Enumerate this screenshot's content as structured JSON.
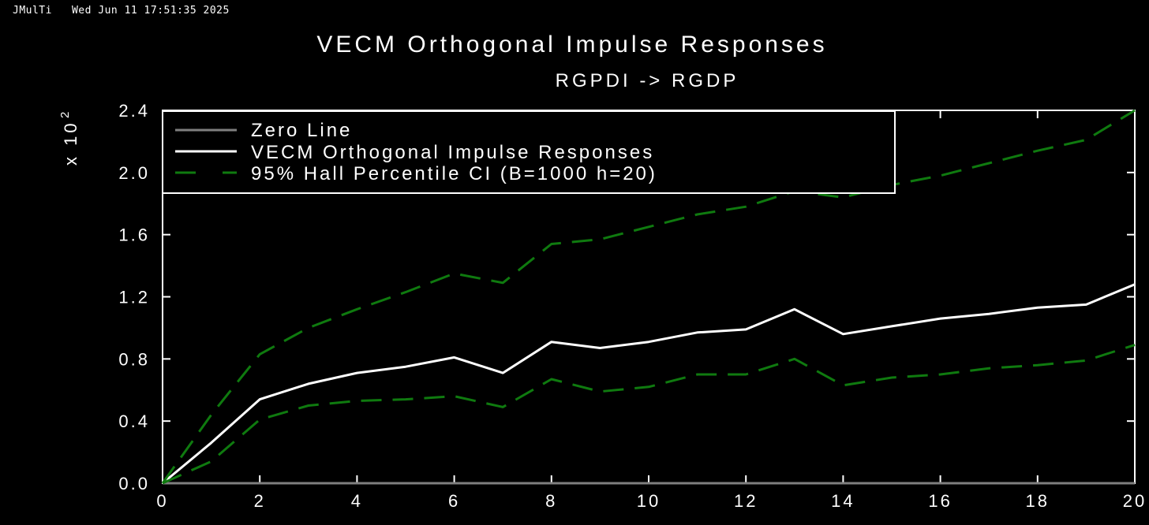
{
  "header": {
    "app": "JMulTi",
    "timestamp": "Wed Jun 11 17:51:35 2025"
  },
  "colors": {
    "background": "#000000",
    "zero_line": "#7f7f7f",
    "irf": "#ffffff",
    "ci": "#0f7a0f"
  },
  "chart_data": {
    "type": "line",
    "title": "VECM Orthogonal Impulse Responses",
    "subtitle": "RGPDI -> RGDP",
    "ylabel_scale": "x 10",
    "ylabel_exp": "2",
    "xlim": [
      0,
      20
    ],
    "ylim": [
      0,
      2.4
    ],
    "x_ticks": [
      0,
      2,
      4,
      6,
      8,
      10,
      12,
      14,
      16,
      18,
      20
    ],
    "y_ticks": [
      "0.0",
      "0.4",
      "0.8",
      "1.2",
      "1.6",
      "2.0",
      "2.4"
    ],
    "legend_position": "top-left",
    "x": [
      0,
      1,
      2,
      3,
      4,
      5,
      6,
      7,
      8,
      9,
      10,
      11,
      12,
      13,
      14,
      15,
      16,
      17,
      18,
      19,
      20
    ],
    "series": [
      {
        "name": "Zero Line",
        "style": "solid-gray",
        "values": [
          0,
          0,
          0,
          0,
          0,
          0,
          0,
          0,
          0,
          0,
          0,
          0,
          0,
          0,
          0,
          0,
          0,
          0,
          0,
          0,
          0
        ]
      },
      {
        "name": "VECM Orthogonal Impulse Responses",
        "style": "solid-white",
        "values": [
          0,
          0.26,
          0.54,
          0.64,
          0.71,
          0.75,
          0.81,
          0.71,
          0.91,
          0.87,
          0.91,
          0.97,
          0.99,
          1.12,
          0.96,
          1.01,
          1.06,
          1.09,
          1.13,
          1.15,
          1.28
        ]
      },
      {
        "name": "95% Hall Percentile CI (B=1000 h=20)",
        "style": "dashed-green",
        "values": [
          0,
          0.44,
          0.83,
          1.0,
          1.12,
          1.23,
          1.35,
          1.29,
          1.54,
          1.57,
          1.65,
          1.73,
          1.78,
          1.88,
          1.84,
          1.92,
          1.98,
          2.06,
          2.14,
          2.21,
          2.4
        ]
      },
      {
        "name": "",
        "style": "dashed-green",
        "values": [
          0,
          0.14,
          0.41,
          0.5,
          0.53,
          0.54,
          0.56,
          0.49,
          0.67,
          0.59,
          0.62,
          0.7,
          0.7,
          0.8,
          0.63,
          0.68,
          0.7,
          0.74,
          0.76,
          0.79,
          0.89
        ]
      }
    ]
  }
}
